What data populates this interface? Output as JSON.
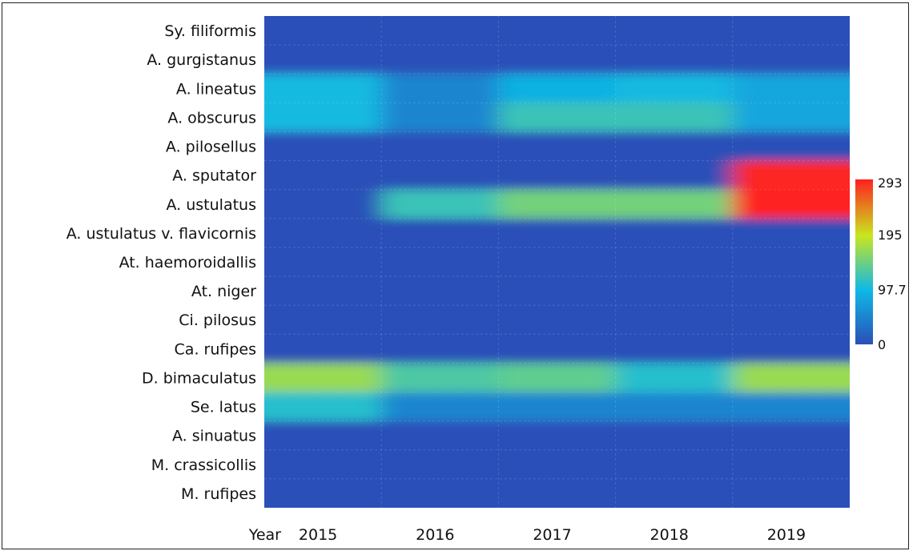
{
  "chart_data": {
    "type": "heatmap",
    "title": "",
    "xlabel": "Year",
    "ylabel": "",
    "x": [
      "2015",
      "2016",
      "2017",
      "2018",
      "2019"
    ],
    "y": [
      "Sy. filiformis",
      "A. gurgistanus",
      "A. lineatus",
      "A. obscurus",
      "A. pilosellus",
      "A. sputator",
      "A. ustulatus",
      "A. ustulatus v. flavicornis",
      "At. haemoroidallis",
      "At. niger",
      "Ci. pilosus",
      "Ca. rufipes",
      "D. bimaculatus",
      "Se. latus",
      "A. sinuatus",
      "M. crassicollis",
      "M. rufipes"
    ],
    "values": [
      [
        0,
        0,
        0,
        0,
        0
      ],
      [
        0,
        0,
        0,
        0,
        0
      ],
      [
        100,
        50,
        90,
        100,
        80
      ],
      [
        100,
        50,
        120,
        120,
        80
      ],
      [
        0,
        0,
        0,
        0,
        0
      ],
      [
        0,
        0,
        0,
        0,
        290
      ],
      [
        0,
        120,
        150,
        150,
        293
      ],
      [
        0,
        0,
        0,
        0,
        0
      ],
      [
        0,
        0,
        0,
        0,
        0
      ],
      [
        0,
        0,
        0,
        0,
        0
      ],
      [
        0,
        0,
        0,
        0,
        0
      ],
      [
        0,
        0,
        0,
        0,
        0
      ],
      [
        170,
        130,
        140,
        110,
        170
      ],
      [
        110,
        50,
        50,
        50,
        50
      ],
      [
        0,
        0,
        0,
        0,
        0
      ],
      [
        0,
        0,
        0,
        0,
        0
      ],
      [
        0,
        0,
        0,
        0,
        0
      ]
    ],
    "colorbar": {
      "ticks": [
        "293",
        "195",
        "97.7",
        "0"
      ],
      "tick_values": [
        293,
        195,
        97.7,
        0
      ],
      "min": 0,
      "max": 293,
      "colors": [
        "#2a4fb8",
        "#0fb9e6",
        "#c9e61f",
        "#ff2020"
      ]
    },
    "grid": true,
    "legend": "right"
  }
}
